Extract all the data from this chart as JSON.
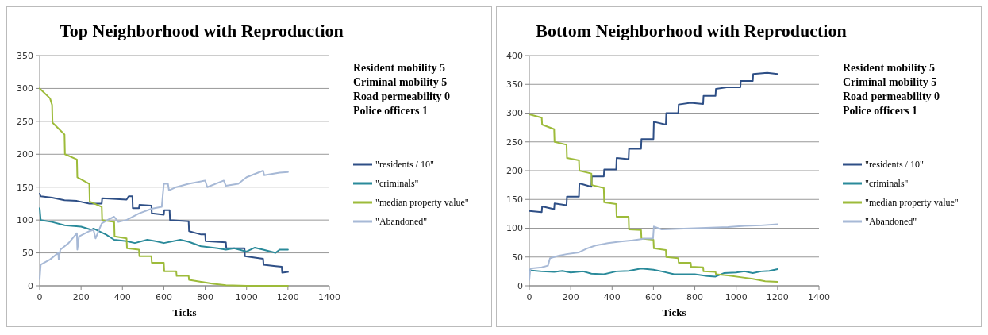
{
  "chart_data": [
    {
      "type": "line",
      "title": "Top Neighborhood with Reproduction",
      "xlabel": "Ticks",
      "xlim": [
        0,
        1400
      ],
      "xticks": [
        0,
        200,
        400,
        600,
        800,
        1000,
        1200,
        1400
      ],
      "ylim": [
        0,
        350
      ],
      "yticks": [
        0,
        50,
        100,
        150,
        200,
        250,
        300,
        350
      ],
      "grid": "y",
      "legend": "right",
      "annotations": [
        "Resident mobility 5",
        "Criminal mobility 5",
        "Road permeability 0",
        "Police officers 1"
      ],
      "series": [
        {
          "name": "\"residents / 10\"",
          "color": "#2e4f86",
          "x": [
            0,
            5,
            60,
            120,
            180,
            240,
            242,
            300,
            302,
            420,
            430,
            448,
            450,
            480,
            482,
            540,
            542,
            600,
            602,
            628,
            630,
            720,
            722,
            780,
            800,
            802,
            900,
            902,
            990,
            992,
            1080,
            1082,
            1140,
            1170,
            1172,
            1200
          ],
          "values": [
            140,
            136,
            134,
            130,
            129,
            125,
            125,
            125,
            133,
            131,
            136,
            136,
            118,
            118,
            123,
            122,
            110,
            108,
            115,
            115,
            100,
            98,
            83,
            78,
            78,
            68,
            66,
            57,
            57,
            45,
            41,
            32,
            30,
            29,
            20,
            21
          ]
        },
        {
          "name": "\"criminals\"",
          "color": "#2a8a9a",
          "x": [
            0,
            5,
            60,
            120,
            200,
            250,
            260,
            320,
            360,
            420,
            460,
            520,
            560,
            600,
            680,
            720,
            780,
            860,
            900,
            940,
            1000,
            1040,
            1080,
            1140,
            1160,
            1200
          ],
          "values": [
            118,
            100,
            97,
            92,
            90,
            85,
            87,
            78,
            70,
            68,
            65,
            70,
            68,
            65,
            70,
            67,
            60,
            57,
            55,
            57,
            52,
            58,
            55,
            50,
            55,
            55
          ]
        },
        {
          "name": "\"median property value\"",
          "color": "#9dbb3a",
          "x": [
            0,
            50,
            60,
            62,
            120,
            122,
            180,
            182,
            240,
            242,
            300,
            302,
            360,
            362,
            420,
            422,
            480,
            482,
            540,
            542,
            600,
            602,
            660,
            662,
            720,
            722,
            780,
            840,
            900,
            1000,
            1200
          ],
          "values": [
            300,
            285,
            275,
            248,
            230,
            200,
            192,
            165,
            155,
            128,
            120,
            100,
            97,
            75,
            72,
            57,
            55,
            45,
            45,
            35,
            35,
            22,
            22,
            15,
            15,
            9,
            6,
            3,
            1,
            0,
            0
          ]
        },
        {
          "name": "\"Abandoned\"",
          "color": "#a7b9d6",
          "x": [
            0,
            5,
            50,
            90,
            92,
            100,
            140,
            180,
            182,
            190,
            240,
            260,
            270,
            300,
            340,
            360,
            380,
            420,
            480,
            540,
            590,
            600,
            620,
            625,
            660,
            720,
            800,
            810,
            890,
            900,
            960,
            1000,
            1080,
            1085,
            1160,
            1200
          ],
          "values": [
            10,
            32,
            40,
            50,
            40,
            55,
            65,
            80,
            55,
            75,
            83,
            85,
            72,
            95,
            102,
            105,
            97,
            100,
            110,
            117,
            120,
            155,
            155,
            145,
            150,
            155,
            160,
            150,
            160,
            152,
            155,
            165,
            175,
            168,
            172,
            173
          ]
        }
      ]
    },
    {
      "type": "line",
      "title": "Bottom Neighborhood with Reproduction",
      "xlabel": "Ticks",
      "xlim": [
        0,
        1400
      ],
      "xticks": [
        0,
        200,
        400,
        600,
        800,
        1000,
        1200,
        1400
      ],
      "ylim": [
        0,
        400
      ],
      "yticks": [
        0,
        50,
        100,
        150,
        200,
        250,
        300,
        350,
        400
      ],
      "grid": "y",
      "legend": "right",
      "annotations": [
        "Resident mobility 5",
        "Criminal mobility 5",
        "Road permeability 0",
        "Police officers 1"
      ],
      "series": [
        {
          "name": "\"residents / 10\"",
          "color": "#2e4f86",
          "x": [
            0,
            60,
            62,
            120,
            122,
            180,
            182,
            240,
            242,
            300,
            302,
            360,
            362,
            420,
            422,
            480,
            482,
            540,
            542,
            600,
            602,
            660,
            662,
            720,
            722,
            780,
            840,
            842,
            900,
            902,
            960,
            1020,
            1022,
            1080,
            1082,
            1150,
            1200
          ],
          "values": [
            130,
            128,
            138,
            133,
            143,
            140,
            155,
            155,
            178,
            172,
            190,
            190,
            202,
            202,
            222,
            220,
            238,
            238,
            255,
            255,
            285,
            280,
            300,
            300,
            315,
            318,
            316,
            330,
            330,
            342,
            345,
            345,
            356,
            356,
            368,
            370,
            368
          ]
        },
        {
          "name": "\"criminals\"",
          "color": "#2a8a9a",
          "x": [
            0,
            60,
            120,
            160,
            200,
            260,
            300,
            360,
            420,
            480,
            540,
            600,
            640,
            700,
            800,
            860,
            900,
            940,
            1000,
            1040,
            1080,
            1120,
            1160,
            1200
          ],
          "values": [
            27,
            25,
            24,
            26,
            23,
            25,
            21,
            20,
            25,
            26,
            30,
            28,
            25,
            20,
            20,
            17,
            16,
            22,
            23,
            25,
            22,
            25,
            26,
            29
          ]
        },
        {
          "name": "\"median property value\"",
          "color": "#9dbb3a",
          "x": [
            0,
            60,
            62,
            120,
            122,
            180,
            182,
            240,
            242,
            300,
            302,
            360,
            362,
            420,
            422,
            480,
            482,
            540,
            542,
            600,
            602,
            660,
            662,
            720,
            722,
            780,
            782,
            840,
            842,
            900,
            902,
            960,
            1020,
            1080,
            1140,
            1200
          ],
          "values": [
            298,
            292,
            280,
            272,
            250,
            245,
            222,
            218,
            200,
            195,
            175,
            170,
            145,
            142,
            120,
            120,
            98,
            97,
            82,
            80,
            65,
            62,
            50,
            48,
            40,
            40,
            33,
            32,
            25,
            24,
            20,
            18,
            15,
            12,
            8,
            7
          ]
        },
        {
          "name": "\"Abandoned\"",
          "color": "#a7b9d6",
          "x": [
            0,
            5,
            60,
            90,
            100,
            140,
            180,
            240,
            280,
            320,
            380,
            440,
            500,
            560,
            598,
            602,
            640,
            720,
            800,
            880,
            960,
            1040,
            1120,
            1200
          ],
          "values": [
            10,
            30,
            32,
            35,
            48,
            52,
            55,
            58,
            65,
            70,
            74,
            77,
            79,
            82,
            82,
            103,
            98,
            99,
            100,
            101,
            102,
            104,
            105,
            107
          ]
        }
      ]
    }
  ]
}
